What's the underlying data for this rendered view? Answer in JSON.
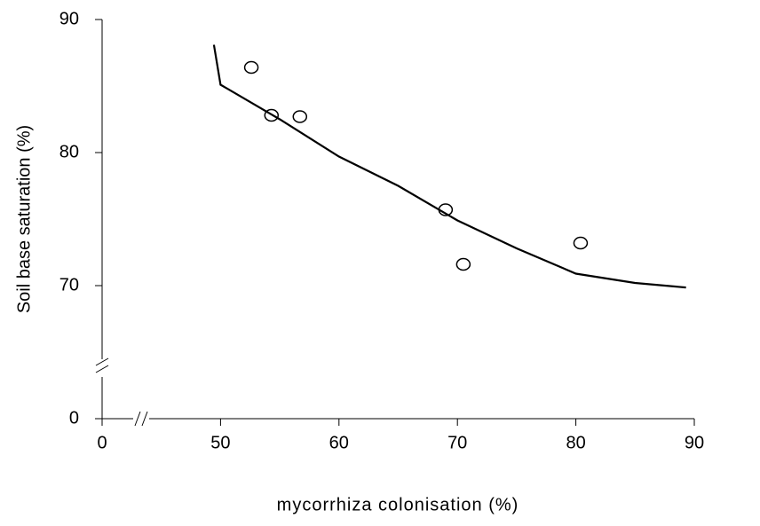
{
  "chart_data": {
    "type": "scatter",
    "xlabel": "mycorrhiza colonisation (%)",
    "ylabel": "Soil base saturation (%)",
    "xlim": [
      0,
      90
    ],
    "xticks": [
      0,
      50,
      60,
      70,
      80,
      90
    ],
    "ylim": [
      0,
      90
    ],
    "yticks": [
      0,
      70,
      80,
      90
    ],
    "series": [
      {
        "style": "markers",
        "color": "#000000",
        "x": [
          52.6,
          54.3,
          56.7,
          69.0,
          70.5,
          80.4
        ],
        "values": [
          86.4,
          82.8,
          82.7,
          75.7,
          71.6,
          73.2
        ]
      },
      {
        "style": "line",
        "color": "#000000",
        "x": [
          47.2,
          50,
          55,
          60,
          65,
          70,
          75,
          80,
          85,
          89.3
        ],
        "values": [
          88.1,
          85.1,
          82.5,
          79.7,
          77.5,
          74.9,
          72.8,
          70.9,
          70.2,
          69.0
        ]
      }
    ]
  }
}
